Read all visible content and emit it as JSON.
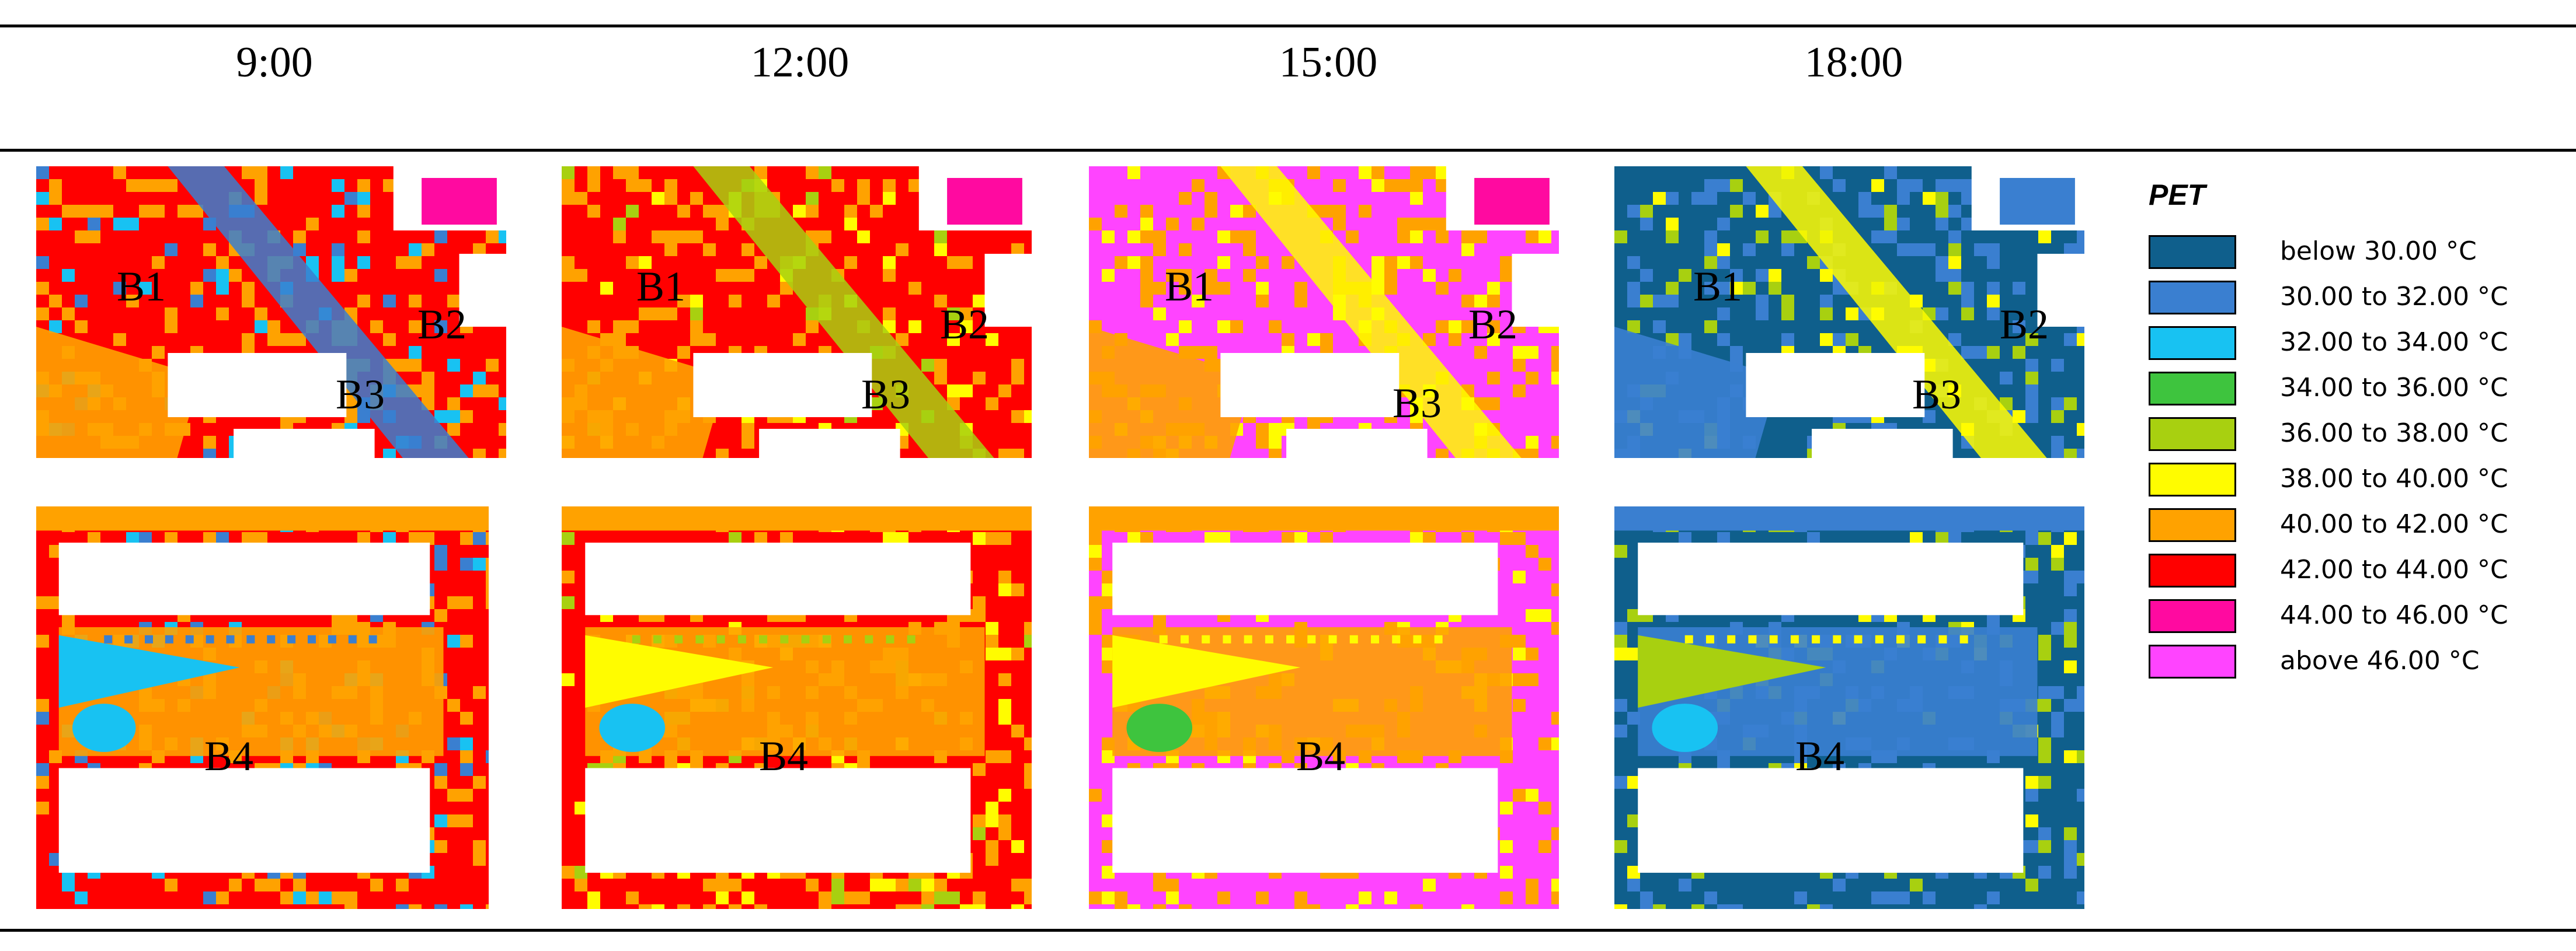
{
  "columns": [
    "9:00",
    "12:00",
    "15:00",
    "18:00"
  ],
  "labels": {
    "b1": "B1",
    "b2": "B2",
    "b3": "B3",
    "b4": "B4"
  },
  "legend": {
    "title": "PET",
    "items": [
      {
        "label": "below 30.00 °C",
        "color": "#0f5f8c"
      },
      {
        "label": "30.00 to 32.00 °C",
        "color": "#3a7fd0"
      },
      {
        "label": "32.00 to 34.00 °C",
        "color": "#18c2f2"
      },
      {
        "label": "34.00 to 36.00 °C",
        "color": "#3ec43e"
      },
      {
        "label": "36.00 to 38.00 °C",
        "color": "#a8d010"
      },
      {
        "label": "38.00 to 40.00 °C",
        "color": "#fffc00"
      },
      {
        "label": "40.00 to 42.00 °C",
        "color": "#ffa200"
      },
      {
        "label": "42.00 to 44.00 °C",
        "color": "#ff0000"
      },
      {
        "label": "44.00 to 46.00 °C",
        "color": "#ff0aa0"
      },
      {
        "label": "above 46.00 °C",
        "color": "#ff44ff"
      }
    ]
  },
  "panels": {
    "t0900": {
      "dominant": "#ff0000",
      "secondary": "#ffa200",
      "accent": "#18c2f2",
      "road": "#3a7fd0"
    },
    "t1200": {
      "dominant": "#ff0000",
      "secondary": "#ffa200",
      "accent": "#fffc00",
      "road": "#a8d010"
    },
    "t1500": {
      "dominant": "#ff44ff",
      "secondary": "#ffa200",
      "accent": "#fffc00",
      "road": "#fffc00"
    },
    "t1800": {
      "dominant": "#0f5f8c",
      "secondary": "#3a7fd0",
      "accent": "#a8d010",
      "road": "#fffc00"
    }
  }
}
